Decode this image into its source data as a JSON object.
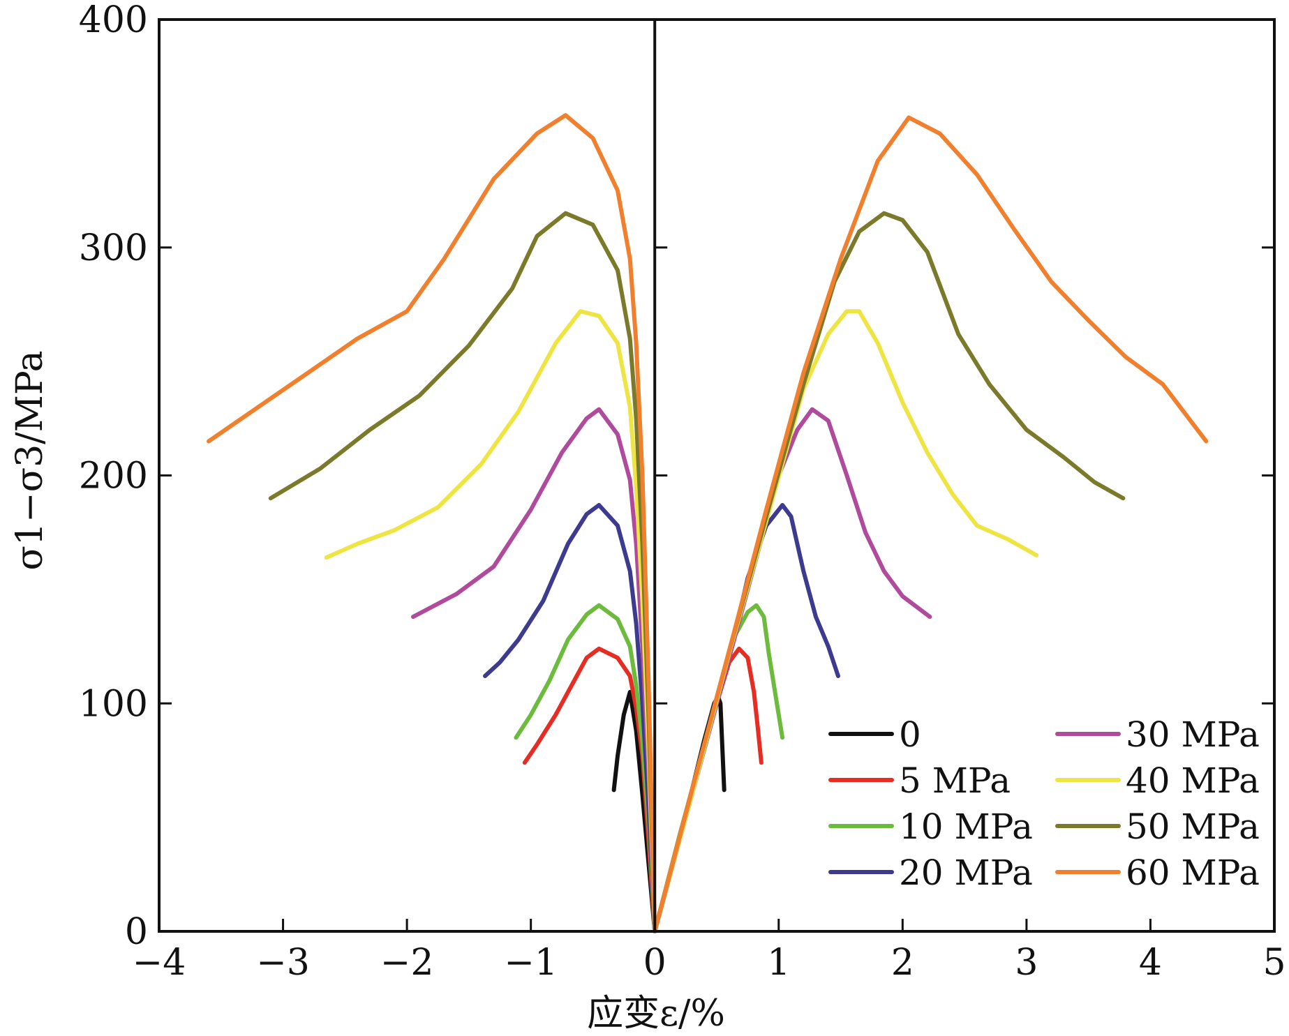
{
  "chart_data": {
    "type": "line",
    "title": "",
    "xlabel": "应变ε/%",
    "ylabel": "σ1−σ3/MPa",
    "xlim": [
      -4,
      5
    ],
    "ylim": [
      0,
      400
    ],
    "xticks": [
      -4,
      -3,
      -2,
      -1,
      0,
      1,
      2,
      3,
      4,
      5
    ],
    "yticks": [
      0,
      100,
      200,
      300,
      400
    ],
    "xtick_labels": [
      "−4",
      "−3",
      "−2",
      "−1",
      "0",
      "1",
      "2",
      "3",
      "4",
      "5"
    ],
    "ytick_labels": [
      "0",
      "100",
      "200",
      "300",
      "400"
    ],
    "grid": false,
    "legend_position": "bottom-right",
    "series": [
      {
        "name": "0",
        "color": "#111111",
        "right": [
          [
            0,
            0
          ],
          [
            0.1,
            20
          ],
          [
            0.2,
            41
          ],
          [
            0.3,
            62
          ],
          [
            0.4,
            84
          ],
          [
            0.48,
            100
          ],
          [
            0.51,
            103
          ],
          [
            0.53,
            100
          ],
          [
            0.56,
            62
          ]
        ],
        "left": [
          [
            0,
            0
          ],
          [
            -0.05,
            30
          ],
          [
            -0.1,
            60
          ],
          [
            -0.15,
            88
          ],
          [
            -0.2,
            105
          ],
          [
            -0.25,
            95
          ],
          [
            -0.3,
            77
          ],
          [
            -0.33,
            62
          ]
        ]
      },
      {
        "name": "5 MPa",
        "color": "#e52d24",
        "right": [
          [
            0,
            0
          ],
          [
            0.1,
            21
          ],
          [
            0.2,
            42
          ],
          [
            0.3,
            62
          ],
          [
            0.4,
            80
          ],
          [
            0.5,
            100
          ],
          [
            0.6,
            118
          ],
          [
            0.68,
            124
          ],
          [
            0.75,
            120
          ],
          [
            0.8,
            105
          ],
          [
            0.83,
            90
          ],
          [
            0.86,
            74
          ]
        ],
        "left": [
          [
            0,
            0
          ],
          [
            -0.05,
            40
          ],
          [
            -0.1,
            77
          ],
          [
            -0.15,
            98
          ],
          [
            -0.2,
            112
          ],
          [
            -0.3,
            120
          ],
          [
            -0.45,
            124
          ],
          [
            -0.55,
            120
          ],
          [
            -0.65,
            110
          ],
          [
            -0.8,
            95
          ],
          [
            -0.95,
            82
          ],
          [
            -1.05,
            74
          ]
        ]
      },
      {
        "name": "10 MPa",
        "color": "#6cbb3c",
        "right": [
          [
            0,
            0
          ],
          [
            0.2,
            42
          ],
          [
            0.4,
            82
          ],
          [
            0.55,
            110
          ],
          [
            0.65,
            130
          ],
          [
            0.75,
            140
          ],
          [
            0.82,
            143
          ],
          [
            0.88,
            138
          ],
          [
            0.92,
            122
          ],
          [
            0.97,
            105
          ],
          [
            1.03,
            85
          ]
        ],
        "left": [
          [
            0,
            0
          ],
          [
            -0.05,
            48
          ],
          [
            -0.1,
            83
          ],
          [
            -0.15,
            108
          ],
          [
            -0.2,
            125
          ],
          [
            -0.3,
            137
          ],
          [
            -0.45,
            143
          ],
          [
            -0.55,
            139
          ],
          [
            -0.7,
            128
          ],
          [
            -0.85,
            110
          ],
          [
            -1.0,
            95
          ],
          [
            -1.12,
            85
          ]
        ]
      },
      {
        "name": "20 MPa",
        "color": "#3c3b8f",
        "right": [
          [
            0,
            0
          ],
          [
            0.2,
            40
          ],
          [
            0.4,
            80
          ],
          [
            0.6,
            120
          ],
          [
            0.75,
            155
          ],
          [
            0.9,
            178
          ],
          [
            1.03,
            187
          ],
          [
            1.1,
            182
          ],
          [
            1.2,
            158
          ],
          [
            1.3,
            138
          ],
          [
            1.4,
            125
          ],
          [
            1.48,
            112
          ]
        ],
        "left": [
          [
            0,
            0
          ],
          [
            -0.05,
            55
          ],
          [
            -0.1,
            100
          ],
          [
            -0.15,
            135
          ],
          [
            -0.2,
            158
          ],
          [
            -0.3,
            178
          ],
          [
            -0.45,
            187
          ],
          [
            -0.55,
            183
          ],
          [
            -0.7,
            170
          ],
          [
            -0.9,
            145
          ],
          [
            -1.1,
            128
          ],
          [
            -1.25,
            118
          ],
          [
            -1.37,
            112
          ]
        ]
      },
      {
        "name": "30 MPa",
        "color": "#b04a9d",
        "right": [
          [
            0,
            0
          ],
          [
            0.3,
            60
          ],
          [
            0.6,
            120
          ],
          [
            0.8,
            160
          ],
          [
            1.0,
            200
          ],
          [
            1.15,
            220
          ],
          [
            1.27,
            229
          ],
          [
            1.4,
            224
          ],
          [
            1.55,
            200
          ],
          [
            1.7,
            175
          ],
          [
            1.85,
            158
          ],
          [
            2.0,
            147
          ],
          [
            2.22,
            138
          ]
        ],
        "left": [
          [
            0,
            0
          ],
          [
            -0.05,
            70
          ],
          [
            -0.1,
            125
          ],
          [
            -0.15,
            170
          ],
          [
            -0.2,
            198
          ],
          [
            -0.3,
            218
          ],
          [
            -0.45,
            229
          ],
          [
            -0.55,
            225
          ],
          [
            -0.75,
            210
          ],
          [
            -1.0,
            185
          ],
          [
            -1.3,
            160
          ],
          [
            -1.6,
            148
          ],
          [
            -1.95,
            138
          ]
        ]
      },
      {
        "name": "40 MPa",
        "color": "#eee444",
        "right": [
          [
            0,
            0
          ],
          [
            0.3,
            60
          ],
          [
            0.6,
            122
          ],
          [
            0.9,
            180
          ],
          [
            1.2,
            238
          ],
          [
            1.4,
            262
          ],
          [
            1.55,
            272
          ],
          [
            1.65,
            272
          ],
          [
            1.8,
            258
          ],
          [
            2.0,
            232
          ],
          [
            2.2,
            210
          ],
          [
            2.4,
            192
          ],
          [
            2.6,
            178
          ],
          [
            2.85,
            172
          ],
          [
            3.08,
            165
          ]
        ],
        "left": [
          [
            0,
            0
          ],
          [
            -0.05,
            80
          ],
          [
            -0.1,
            145
          ],
          [
            -0.15,
            195
          ],
          [
            -0.2,
            230
          ],
          [
            -0.3,
            258
          ],
          [
            -0.45,
            270
          ],
          [
            -0.6,
            272
          ],
          [
            -0.8,
            258
          ],
          [
            -1.1,
            228
          ],
          [
            -1.4,
            205
          ],
          [
            -1.75,
            186
          ],
          [
            -2.1,
            176
          ],
          [
            -2.4,
            170
          ],
          [
            -2.65,
            164
          ]
        ]
      },
      {
        "name": "50 MPa",
        "color": "#7b7a2a",
        "right": [
          [
            0,
            0
          ],
          [
            0.3,
            62
          ],
          [
            0.6,
            123
          ],
          [
            0.9,
            182
          ],
          [
            1.2,
            240
          ],
          [
            1.45,
            285
          ],
          [
            1.65,
            307
          ],
          [
            1.85,
            315
          ],
          [
            2.0,
            312
          ],
          [
            2.2,
            298
          ],
          [
            2.45,
            262
          ],
          [
            2.7,
            240
          ],
          [
            3.0,
            220
          ],
          [
            3.3,
            208
          ],
          [
            3.55,
            197
          ],
          [
            3.78,
            190
          ]
        ],
        "left": [
          [
            0,
            0
          ],
          [
            -0.05,
            95
          ],
          [
            -0.1,
            170
          ],
          [
            -0.15,
            225
          ],
          [
            -0.2,
            260
          ],
          [
            -0.3,
            290
          ],
          [
            -0.5,
            310
          ],
          [
            -0.72,
            315
          ],
          [
            -0.95,
            305
          ],
          [
            -1.15,
            282
          ],
          [
            -1.5,
            257
          ],
          [
            -1.9,
            235
          ],
          [
            -2.3,
            220
          ],
          [
            -2.7,
            203
          ],
          [
            -3.1,
            190
          ]
        ]
      },
      {
        "name": "60 MPa",
        "color": "#f07f2e",
        "right": [
          [
            0,
            0
          ],
          [
            0.3,
            62
          ],
          [
            0.6,
            123
          ],
          [
            0.9,
            185
          ],
          [
            1.2,
            245
          ],
          [
            1.5,
            295
          ],
          [
            1.8,
            338
          ],
          [
            2.05,
            357
          ],
          [
            2.3,
            350
          ],
          [
            2.6,
            332
          ],
          [
            2.9,
            308
          ],
          [
            3.2,
            285
          ],
          [
            3.5,
            268
          ],
          [
            3.8,
            252
          ],
          [
            4.1,
            240
          ],
          [
            4.45,
            215
          ]
        ],
        "left": [
          [
            0,
            0
          ],
          [
            -0.05,
            110
          ],
          [
            -0.1,
            200
          ],
          [
            -0.15,
            258
          ],
          [
            -0.2,
            295
          ],
          [
            -0.3,
            325
          ],
          [
            -0.5,
            348
          ],
          [
            -0.72,
            358
          ],
          [
            -0.95,
            350
          ],
          [
            -1.3,
            330
          ],
          [
            -1.7,
            295
          ],
          [
            -2.0,
            272
          ],
          [
            -2.4,
            260
          ],
          [
            -2.8,
            245
          ],
          [
            -3.2,
            230
          ],
          [
            -3.6,
            215
          ]
        ]
      }
    ]
  }
}
